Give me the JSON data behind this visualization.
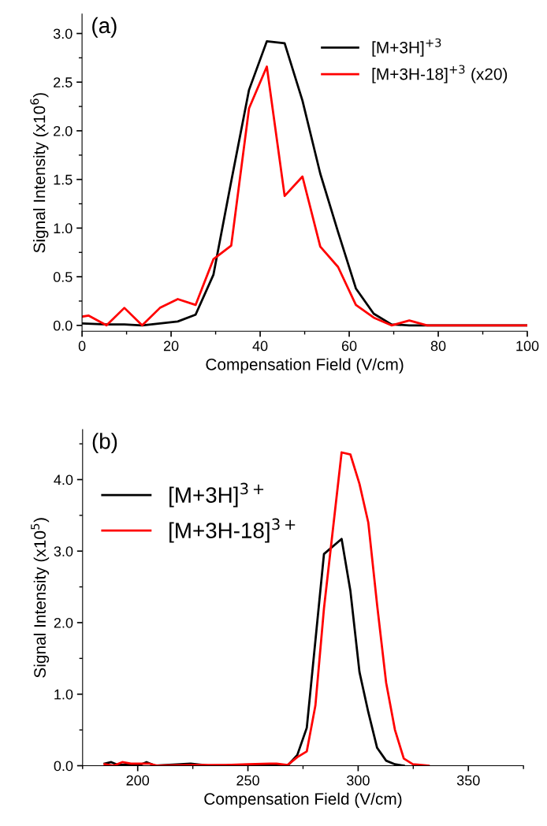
{
  "chart_data": [
    {
      "type": "line",
      "xlabel": "Compensation Field (V/cm)",
      "ylabel": "Signal Intensity (x10$^{6}$)",
      "annotations": [
        "(a)"
      ],
      "legend": "top right",
      "grid": false,
      "marker": "none",
      "line_style": "solid",
      "xlim": [
        0,
        100
      ],
      "xticks": [
        0,
        20,
        40,
        60,
        80,
        100
      ],
      "ylim": [
        -0.06,
        3.2
      ],
      "yticks": [
        {
          "value": 0,
          "label": "0.0"
        },
        {
          "value": 0.5,
          "label": "0.5"
        },
        {
          "value": 1,
          "label": "1.0"
        },
        {
          "value": 1.5,
          "label": "1.5"
        },
        {
          "value": 2,
          "label": "2.0"
        },
        {
          "value": 2.5,
          "label": "2.5"
        },
        {
          "value": 3,
          "label": "3.0"
        }
      ],
      "series": [
        {
          "name": "[M+3H]$^{+3}$",
          "color": "#000000",
          "x": [
            0,
            5.5,
            9.5,
            13.5,
            17.5,
            21.5,
            25.5,
            29.5,
            33.5,
            37.5,
            41.5,
            45.5,
            49.5,
            53.5,
            57.5,
            61.5,
            65.5,
            69.5,
            73.5,
            77.5,
            100
          ],
          "values": [
            0.02,
            0.01,
            0.01,
            0,
            0.02,
            0.04,
            0.11,
            0.52,
            1.48,
            2.42,
            2.92,
            2.9,
            2.31,
            1.56,
            0.96,
            0.38,
            0.12,
            0.01,
            0,
            0,
            0
          ]
        },
        {
          "name": "[M+3H-18]$^{+3}$ (x20)",
          "color": "#ff0000",
          "x": [
            0,
            1.5,
            5.5,
            9.5,
            13.5,
            17.5,
            21.5,
            25.5,
            29.5,
            33.5,
            37.5,
            41.5,
            45.5,
            49.5,
            53.5,
            57.5,
            61.5,
            65.5,
            69.5,
            73.5,
            77.5,
            100
          ],
          "values": [
            0.09,
            0.1,
            0,
            0.18,
            0,
            0.18,
            0.27,
            0.21,
            0.68,
            0.82,
            2.23,
            2.66,
            1.33,
            1.53,
            0.81,
            0.6,
            0.21,
            0.08,
            0,
            0.05,
            0,
            0
          ]
        }
      ]
    },
    {
      "type": "line",
      "xlabel": "Compensation Field (V/cm)",
      "ylabel": "Signal Intensity (x10$^{5}$)",
      "annotations": [
        "(b)"
      ],
      "legend": "top left",
      "grid": false,
      "marker": "none",
      "line_style": "solid",
      "xlim": [
        175,
        375
      ],
      "xticks": [
        200,
        250,
        300,
        350
      ],
      "ylim": [
        0,
        4.7
      ],
      "yticks": [
        {
          "value": 0,
          "label": "0.0"
        },
        {
          "value": 1,
          "label": "1.0"
        },
        {
          "value": 2,
          "label": "2.0"
        },
        {
          "value": 3,
          "label": "3.0"
        },
        {
          "value": 4,
          "label": "4.0"
        }
      ],
      "series": [
        {
          "name": "[M+3H]$^{3+}$",
          "color": "#000000",
          "x": [
            185,
            188,
            191,
            197,
            201,
            204,
            208,
            224,
            232,
            248,
            260,
            268,
            272.4,
            276.7,
            284.5,
            292.5,
            296.5,
            300.6,
            304.6,
            308.6,
            312.7,
            316.7,
            320.7
          ],
          "values": [
            0.03,
            0.05,
            0.01,
            0.02,
            0.01,
            0.05,
            0,
            0.03,
            0,
            0.01,
            0.01,
            0,
            0.15,
            0.53,
            2.96,
            3.17,
            2.44,
            1.31,
            0.75,
            0.25,
            0.07,
            0.02,
            0
          ]
        },
        {
          "name": "[M+3H-18]$^{3+}$",
          "color": "#ff0000",
          "x": [
            185,
            189,
            193,
            197,
            201,
            205,
            209,
            225,
            240,
            250,
            260,
            263,
            268,
            272.4,
            276.7,
            280.6,
            284.5,
            292.5,
            296.5,
            300.6,
            304.6,
            308.6,
            312.7,
            316.7,
            320.7,
            324.8,
            329,
            332
          ],
          "values": [
            0.02,
            0,
            0.05,
            0.03,
            0.03,
            0.03,
            0,
            0.01,
            0.01,
            0.02,
            0.03,
            0.03,
            0.01,
            0.12,
            0.2,
            0.84,
            2.2,
            4.38,
            4.35,
            3.94,
            3.4,
            2.25,
            1.16,
            0.5,
            0.1,
            0.02,
            0.01,
            0
          ]
        }
      ]
    }
  ]
}
